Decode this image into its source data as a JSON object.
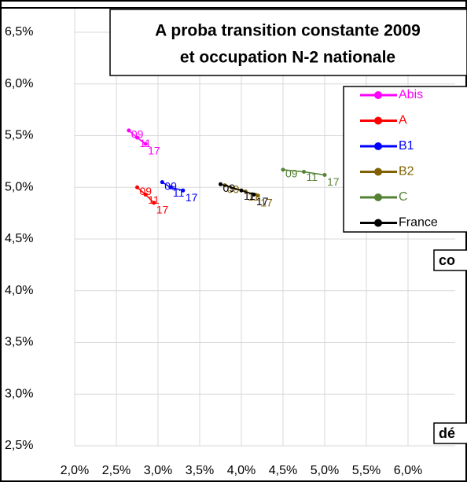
{
  "chart_data": {
    "type": "line",
    "title": [
      "A proba transition constante 2009",
      "et occupation N-2 nationale"
    ],
    "xlim": [
      2.0,
      6.0
    ],
    "ylim": [
      2.5,
      6.5
    ],
    "xticks": [
      {
        "value": 2.0,
        "label": "2,0%"
      },
      {
        "value": 2.5,
        "label": "2,5%"
      },
      {
        "value": 3.0,
        "label": "3,0%"
      },
      {
        "value": 3.5,
        "label": "3,5%"
      },
      {
        "value": 4.0,
        "label": "4,0%"
      },
      {
        "value": 4.5,
        "label": "4,5%"
      },
      {
        "value": 5.0,
        "label": "5,0%"
      },
      {
        "value": 5.5,
        "label": "5,5%"
      },
      {
        "value": 6.0,
        "label": "6,0%"
      }
    ],
    "yticks": [
      {
        "value": 2.5,
        "label": "2,5%"
      },
      {
        "value": 3.0,
        "label": "3,0%"
      },
      {
        "value": 3.5,
        "label": "3,5%"
      },
      {
        "value": 4.0,
        "label": "4,0%"
      },
      {
        "value": 4.5,
        "label": "4,5%"
      },
      {
        "value": 5.0,
        "label": "5,0%"
      },
      {
        "value": 5.5,
        "label": "5,5%"
      },
      {
        "value": 6.0,
        "label": "6,0%"
      },
      {
        "value": 6.5,
        "label": "6,5%"
      }
    ],
    "grid": true,
    "legend": "right",
    "series": [
      {
        "name": "Abis",
        "color": "#ff00ff",
        "x": [
          2.65,
          2.75,
          2.85
        ],
        "values": [
          5.55,
          5.48,
          5.42
        ],
        "point_labels": [
          "09",
          "11",
          "17"
        ]
      },
      {
        "name": "A",
        "color": "#ff0000",
        "x": [
          2.75,
          2.85,
          2.95
        ],
        "values": [
          5.0,
          4.93,
          4.85
        ],
        "point_labels": [
          "09",
          "11",
          "17"
        ]
      },
      {
        "name": "B1",
        "color": "#0000ff",
        "x": [
          3.05,
          3.15,
          3.3
        ],
        "values": [
          5.05,
          5.0,
          4.97
        ],
        "point_labels": [
          "09",
          "11",
          "17"
        ]
      },
      {
        "name": "B2",
        "color": "#806000",
        "x": [
          3.8,
          4.05,
          4.2
        ],
        "values": [
          5.02,
          4.96,
          4.92
        ],
        "point_labels": [
          "09",
          "11",
          "17"
        ]
      },
      {
        "name": "C",
        "color": "#548235",
        "x": [
          4.5,
          4.75,
          5.0
        ],
        "values": [
          5.17,
          5.15,
          5.12
        ],
        "point_labels": [
          "09",
          "11",
          "17"
        ]
      },
      {
        "name": "France",
        "color": "#000000",
        "x": [
          3.75,
          4.0,
          4.15
        ],
        "values": [
          5.03,
          4.97,
          4.93
        ],
        "point_labels": [
          "09",
          "11",
          "17"
        ]
      }
    ],
    "annotations": [
      "co",
      "dé"
    ]
  }
}
